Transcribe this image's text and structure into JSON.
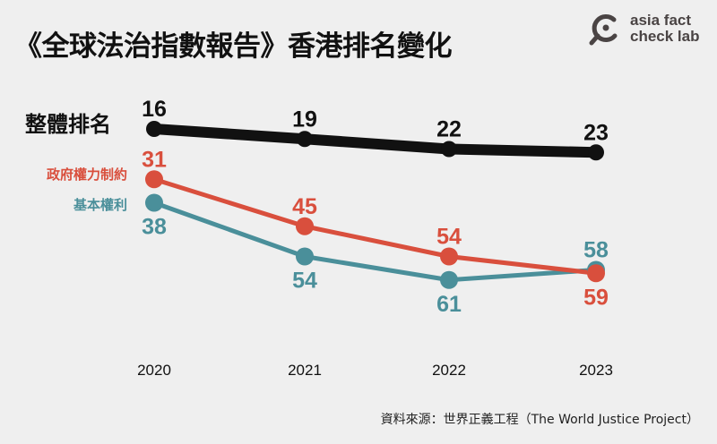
{
  "title": "《全球法治指數報告》香港排名變化",
  "logo": {
    "line1": "asia fact",
    "line2": "check lab"
  },
  "source": "資料來源：世界正義工程（The World Justice Project）",
  "chart_data": {
    "type": "line",
    "title": "《全球法治指數報告》香港排名變化",
    "x": [
      "2020",
      "2021",
      "2022",
      "2023"
    ],
    "y_axis": "rank (lower is better, inverted)",
    "series": [
      {
        "name": "整體排名",
        "values": [
          16,
          19,
          22,
          23
        ],
        "color": "#111111"
      },
      {
        "name": "政府權力制約",
        "values": [
          31,
          45,
          54,
          59
        ],
        "color": "#d94f3d"
      },
      {
        "name": "基本權利",
        "values": [
          38,
          54,
          61,
          58
        ],
        "color": "#4a8f9a"
      }
    ],
    "grid": false
  }
}
